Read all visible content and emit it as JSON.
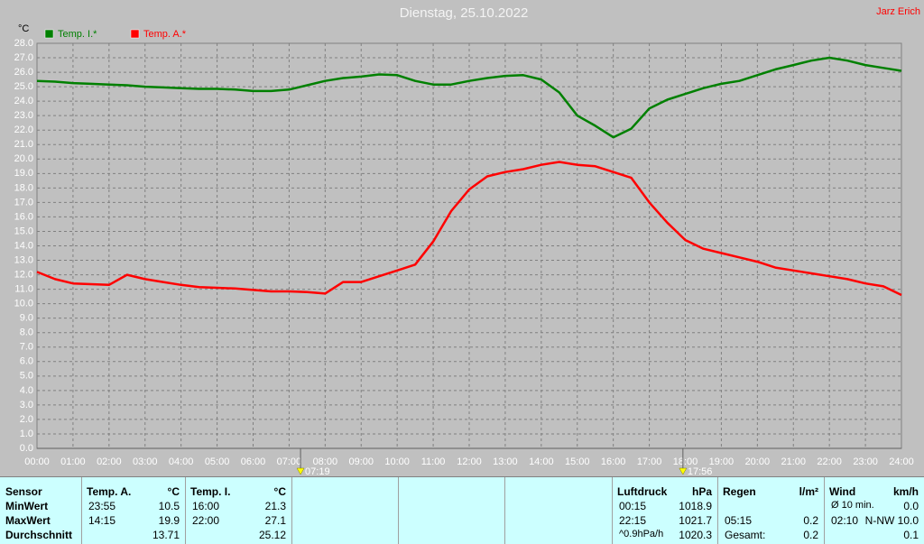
{
  "chart_data": {
    "type": "line",
    "title": "Dienstag, 25.10.2022",
    "author": "Jarz Erich",
    "y_label": "°C",
    "x": [
      0,
      0.5,
      1,
      1.5,
      2,
      2.5,
      3,
      3.5,
      4,
      4.5,
      5,
      5.5,
      6,
      6.5,
      7,
      7.5,
      8,
      8.5,
      9,
      9.5,
      10,
      10.5,
      11,
      11.5,
      12,
      12.5,
      13,
      13.5,
      14,
      14.5,
      15,
      15.5,
      16,
      16.5,
      17,
      17.5,
      18,
      18.5,
      19,
      19.5,
      20,
      20.5,
      21,
      21.5,
      22,
      22.5,
      23,
      23.5,
      24
    ],
    "series": [
      {
        "name": "Temp. I.*",
        "color": "#008000",
        "values": [
          25.4,
          25.35,
          25.25,
          25.2,
          25.15,
          25.1,
          25.0,
          24.95,
          24.9,
          24.85,
          24.85,
          24.8,
          24.7,
          24.7,
          24.8,
          25.1,
          25.4,
          25.6,
          25.7,
          25.85,
          25.8,
          25.4,
          25.15,
          25.15,
          25.4,
          25.6,
          25.75,
          25.8,
          25.5,
          24.6,
          23.0,
          22.3,
          21.5,
          22.1,
          23.5,
          24.1,
          24.5,
          24.9,
          25.2,
          25.4,
          25.8,
          26.2,
          26.5,
          26.8,
          27.0,
          26.8,
          26.5,
          26.3,
          26.1
        ]
      },
      {
        "name": "Temp. A.*",
        "color": "#ff0000",
        "values": [
          12.2,
          11.7,
          11.4,
          11.35,
          11.3,
          12.0,
          11.7,
          11.5,
          11.3,
          11.15,
          11.1,
          11.05,
          10.95,
          10.85,
          10.85,
          10.8,
          10.7,
          11.5,
          11.5,
          11.9,
          12.3,
          12.7,
          14.3,
          16.4,
          17.9,
          18.8,
          19.1,
          19.3,
          19.6,
          19.8,
          19.6,
          19.5,
          19.1,
          18.7,
          17.0,
          15.6,
          14.4,
          13.8,
          13.5,
          13.2,
          12.9,
          12.5,
          12.3,
          12.1,
          11.9,
          11.7,
          11.4,
          11.2,
          10.6
        ]
      }
    ],
    "xlim": [
      0,
      24
    ],
    "xticks": [
      {
        "value": 0,
        "label": "00:00"
      },
      {
        "value": 1,
        "label": "01:00"
      },
      {
        "value": 2,
        "label": "02:00"
      },
      {
        "value": 3,
        "label": "03:00"
      },
      {
        "value": 4,
        "label": "04:00"
      },
      {
        "value": 5,
        "label": "05:00"
      },
      {
        "value": 6,
        "label": "06:00"
      },
      {
        "value": 7,
        "label": "07:00"
      },
      {
        "value": 8,
        "label": "08:00"
      },
      {
        "value": 9,
        "label": "09:00"
      },
      {
        "value": 10,
        "label": "10:00"
      },
      {
        "value": 11,
        "label": "11:00"
      },
      {
        "value": 12,
        "label": "12:00"
      },
      {
        "value": 13,
        "label": "13:00"
      },
      {
        "value": 14,
        "label": "14:00"
      },
      {
        "value": 15,
        "label": "15:00"
      },
      {
        "value": 16,
        "label": "16:00"
      },
      {
        "value": 17,
        "label": "17:00"
      },
      {
        "value": 18,
        "label": "18:00"
      },
      {
        "value": 19,
        "label": "19:00"
      },
      {
        "value": 20,
        "label": "20:00"
      },
      {
        "value": 21,
        "label": "21:00"
      },
      {
        "value": 22,
        "label": "22:00"
      },
      {
        "value": 23,
        "label": "23:00"
      },
      {
        "value": 24,
        "label": "24:00"
      }
    ],
    "ylim": [
      0,
      28
    ],
    "yticks": [
      {
        "value": 0,
        "label": "0.0"
      },
      {
        "value": 1,
        "label": "1.0"
      },
      {
        "value": 2,
        "label": "2.0"
      },
      {
        "value": 3,
        "label": "3.0"
      },
      {
        "value": 4,
        "label": "4.0"
      },
      {
        "value": 5,
        "label": "5.0"
      },
      {
        "value": 6,
        "label": "6.0"
      },
      {
        "value": 7,
        "label": "7.0"
      },
      {
        "value": 8,
        "label": "8.0"
      },
      {
        "value": 9,
        "label": "9.0"
      },
      {
        "value": 10,
        "label": "10.0"
      },
      {
        "value": 11,
        "label": "11.0"
      },
      {
        "value": 12,
        "label": "12.0"
      },
      {
        "value": 13,
        "label": "13.0"
      },
      {
        "value": 14,
        "label": "14.0"
      },
      {
        "value": 15,
        "label": "15.0"
      },
      {
        "value": 16,
        "label": "16.0"
      },
      {
        "value": 17,
        "label": "17.0"
      },
      {
        "value": 18,
        "label": "18.0"
      },
      {
        "value": 19,
        "label": "19.0"
      },
      {
        "value": 20,
        "label": "20.0"
      },
      {
        "value": 21,
        "label": "21.0"
      },
      {
        "value": 22,
        "label": "22.0"
      },
      {
        "value": 23,
        "label": "23.0"
      },
      {
        "value": 24,
        "label": "24.0"
      },
      {
        "value": 25,
        "label": "25.0"
      },
      {
        "value": 26,
        "label": "26.0"
      },
      {
        "value": 27,
        "label": "27.0"
      },
      {
        "value": 28,
        "label": "28.0"
      }
    ],
    "grid": true,
    "sun_events": [
      {
        "x": 7.3167,
        "label": "07:19"
      },
      {
        "x": 17.9333,
        "label": "17:56"
      }
    ]
  },
  "table": {
    "columns": [
      {
        "header": "Sensor",
        "rows": [
          [
            "MinWert"
          ],
          [
            "MaxWert"
          ],
          [
            "Durchschnitt"
          ]
        ]
      },
      {
        "header": "Temp. A.",
        "unit": "°C",
        "rows": [
          [
            "23:55",
            "10.5"
          ],
          [
            "14:15",
            "19.9"
          ],
          [
            null,
            "13.71"
          ]
        ]
      },
      {
        "header": "Temp. I.",
        "unit": "°C",
        "rows": [
          [
            "16:00",
            "21.3"
          ],
          [
            "22:00",
            "27.1"
          ],
          [
            null,
            "25.12"
          ]
        ]
      },
      {
        "header": "Luftdruck",
        "unit": "hPa",
        "rows": [
          [
            "00:15",
            "1018.9"
          ],
          [
            "22:15",
            "1021.7"
          ],
          [
            "^0.9hPa/h",
            "1020.3"
          ]
        ]
      },
      {
        "header": "Regen",
        "unit": "l/m²",
        "rows": [
          [
            null,
            null
          ],
          [
            "05:15",
            "0.2"
          ],
          [
            "Gesamt:",
            "0.2"
          ]
        ]
      },
      {
        "header": "Wind",
        "unit": "km/h",
        "rows": [
          [
            "Ø 10 min.",
            "0.0"
          ],
          [
            "02:10",
            "N-NW 10.0"
          ],
          [
            null,
            "0.1"
          ]
        ]
      }
    ]
  }
}
